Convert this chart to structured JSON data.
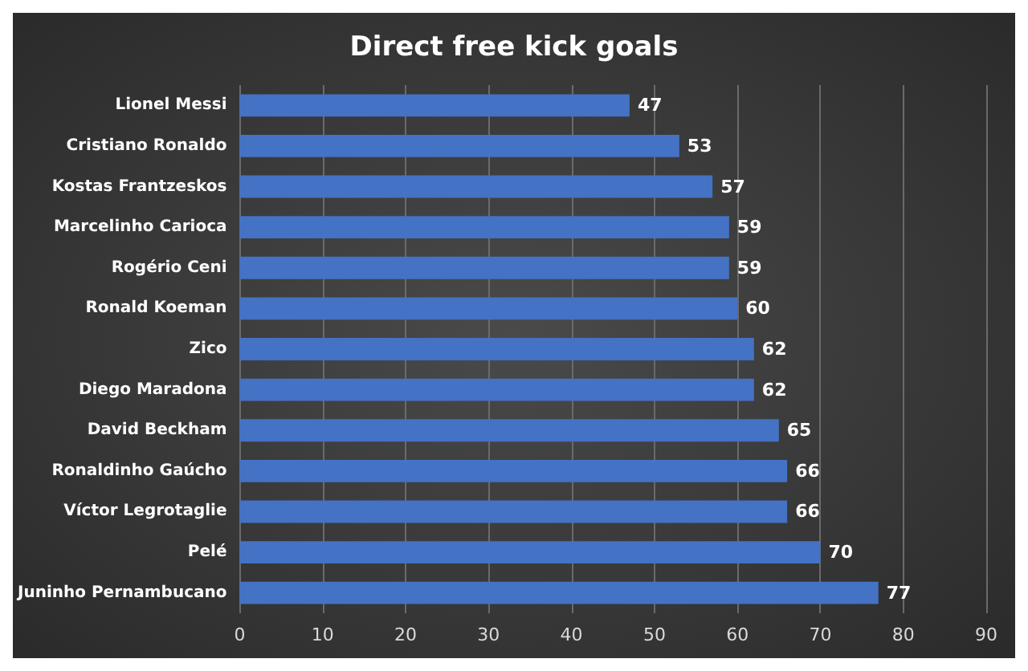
{
  "chart_data": {
    "type": "bar",
    "orientation": "horizontal",
    "title": "Direct free kick goals",
    "categories": [
      "Lionel Messi",
      "Cristiano Ronaldo",
      "Kostas Frantzeskos",
      "Marcelinho Carioca",
      "Rogério Ceni",
      "Ronald Koeman",
      "Zico",
      "Diego Maradona",
      "David Beckham",
      "Ronaldinho Gaúcho",
      "Víctor Legrotaglie",
      "Pelé",
      "Juninho Pernambucano"
    ],
    "values": [
      47,
      53,
      57,
      59,
      59,
      60,
      62,
      62,
      65,
      66,
      66,
      70,
      77
    ],
    "color": "#4472c4",
    "xlim": [
      0,
      90
    ],
    "xticks": [
      0,
      10,
      20,
      30,
      40,
      50,
      60,
      70,
      80,
      90
    ],
    "grid": "x",
    "data_labels": true
  }
}
